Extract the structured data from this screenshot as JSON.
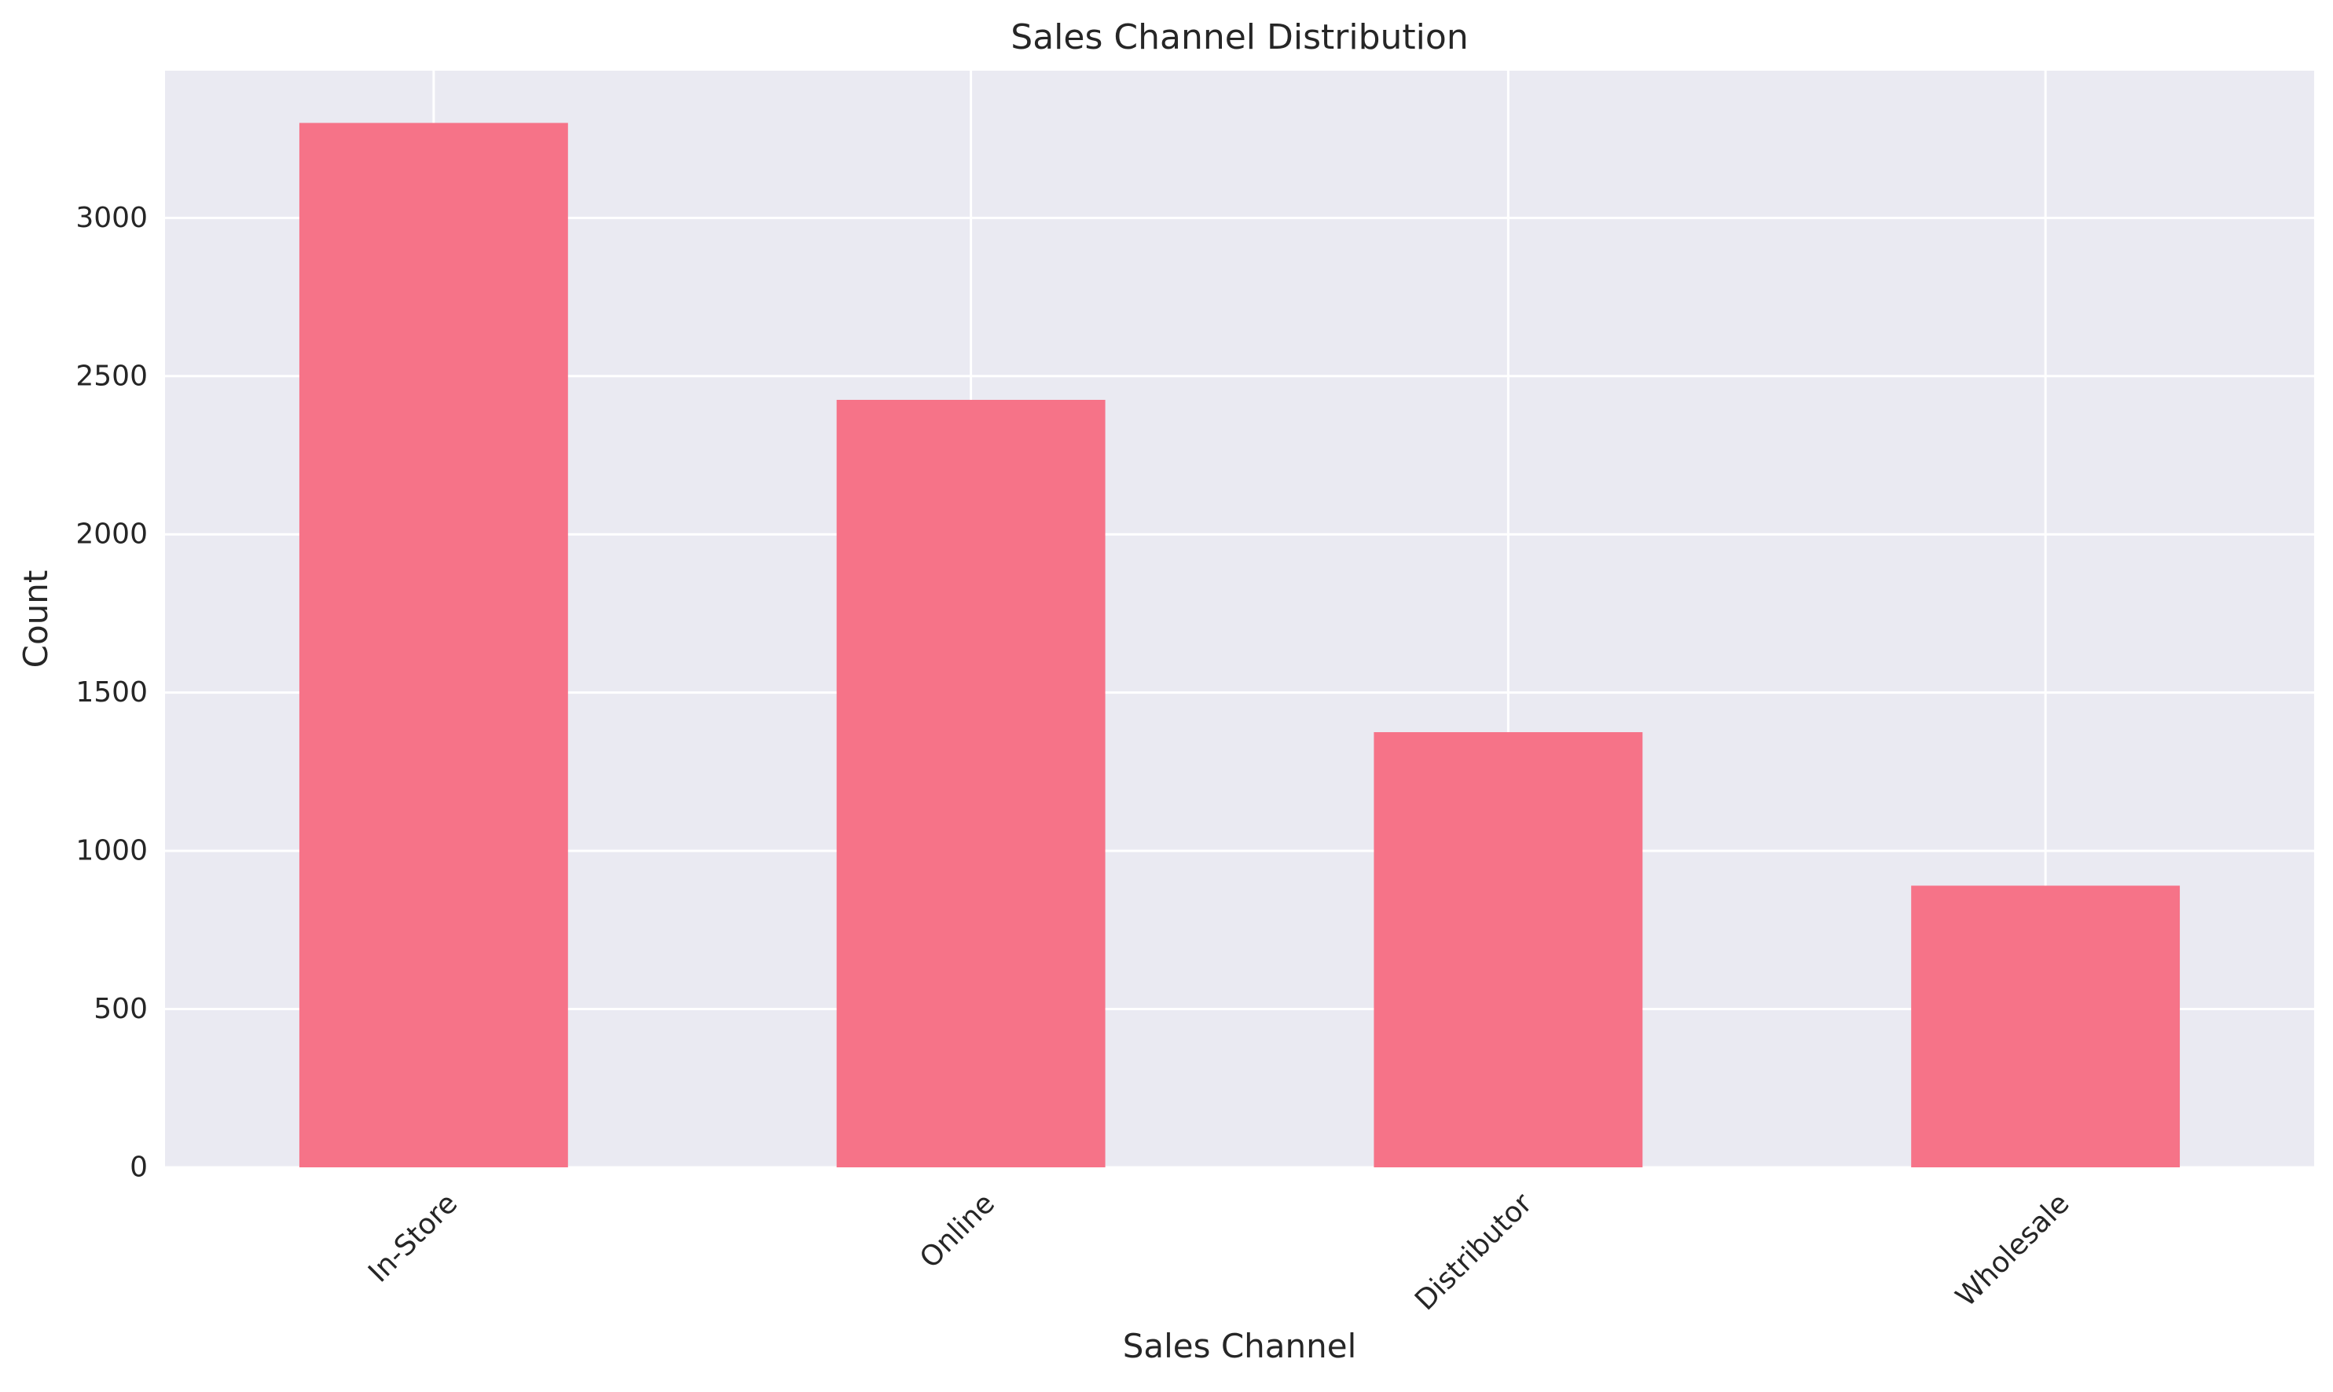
{
  "chart_data": {
    "type": "bar",
    "title": "Sales Channel Distribution",
    "xlabel": "Sales Channel",
    "ylabel": "Count",
    "categories": [
      "In-Store",
      "Online",
      "Distributor",
      "Wholesale"
    ],
    "values": [
      3300,
      2425,
      1375,
      890
    ],
    "ylim": [
      0,
      3465
    ],
    "yticks": [
      0,
      500,
      1000,
      1500,
      2000,
      2500,
      3000
    ],
    "grid": true,
    "legend": "none",
    "colors": {
      "bar": "#f67388",
      "plot_background": "#eaeaf2",
      "grid": "#ffffff",
      "text": "#262626"
    }
  }
}
